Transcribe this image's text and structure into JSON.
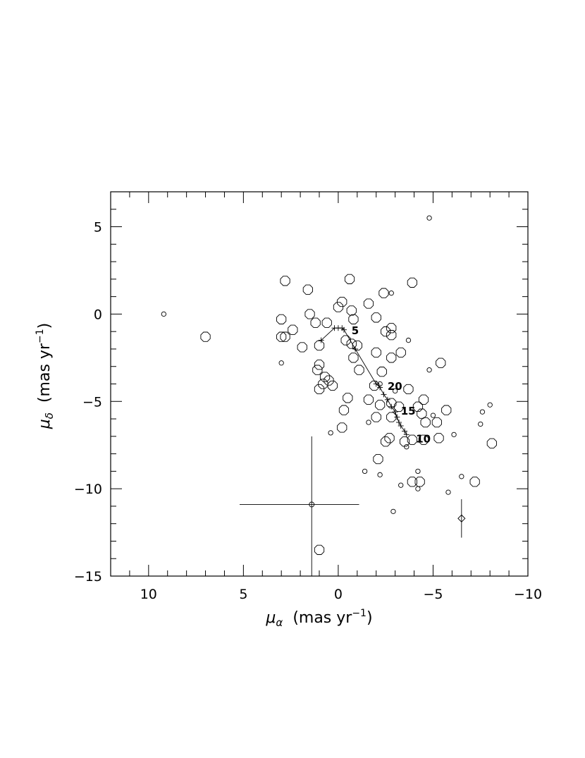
{
  "chart_data": {
    "type": "scatter",
    "title": "",
    "xlabel": {
      "main": "μ",
      "sub": "α",
      "unit_pre": "(mas yr",
      "unit_sup": "−1",
      "unit_post": ")"
    },
    "ylabel": {
      "main": "μ",
      "sub": "δ",
      "unit_pre": "(mas yr",
      "unit_sup": "−1",
      "unit_post": ")"
    },
    "xlim": [
      12,
      -10
    ],
    "ylim": [
      -15,
      7
    ],
    "x_ticks": [
      10,
      5,
      0,
      -5,
      -10
    ],
    "x_tick_labels": [
      "10",
      "5",
      "0",
      "−5",
      "−10"
    ],
    "y_ticks": [
      5,
      0,
      -5,
      -10,
      -15
    ],
    "y_tick_labels": [
      "5",
      "0",
      "−5",
      "−10",
      "−15"
    ],
    "grid": false,
    "points_large": [
      [
        -3.9,
        1.8
      ],
      [
        2.8,
        1.9
      ],
      [
        1.6,
        1.4
      ],
      [
        -0.6,
        2.0
      ],
      [
        -2.4,
        1.2
      ],
      [
        -1.6,
        0.6
      ],
      [
        -2.0,
        -0.2
      ],
      [
        -0.2,
        0.7
      ],
      [
        0.0,
        0.4
      ],
      [
        -0.7,
        0.2
      ],
      [
        -0.8,
        -0.3
      ],
      [
        1.5,
        0.0
      ],
      [
        3.0,
        -0.3
      ],
      [
        2.4,
        -0.9
      ],
      [
        1.2,
        -0.5
      ],
      [
        0.6,
        -0.5
      ],
      [
        3.0,
        -1.3
      ],
      [
        2.8,
        -1.3
      ],
      [
        7.0,
        -1.3
      ],
      [
        1.9,
        -1.9
      ],
      [
        1.0,
        -1.8
      ],
      [
        -0.4,
        -1.5
      ],
      [
        -0.7,
        -1.7
      ],
      [
        -1.0,
        -1.8
      ],
      [
        -2.5,
        -1.0
      ],
      [
        -2.8,
        -0.8
      ],
      [
        -2.8,
        -1.2
      ],
      [
        -3.3,
        -2.2
      ],
      [
        -5.4,
        -2.8
      ],
      [
        -2.0,
        -2.2
      ],
      [
        -0.8,
        -2.5
      ],
      [
        -2.8,
        -2.5
      ],
      [
        -2.3,
        -3.3
      ],
      [
        1.0,
        -2.9
      ],
      [
        1.1,
        -3.2
      ],
      [
        -1.1,
        -3.2
      ],
      [
        0.7,
        -3.6
      ],
      [
        0.5,
        -3.8
      ],
      [
        0.8,
        -4.0
      ],
      [
        1.0,
        -4.3
      ],
      [
        0.3,
        -4.1
      ],
      [
        -1.6,
        -4.9
      ],
      [
        -1.9,
        -4.1
      ],
      [
        -3.7,
        -4.3
      ],
      [
        -4.5,
        -4.9
      ],
      [
        -2.2,
        -5.2
      ],
      [
        -0.3,
        -5.5
      ],
      [
        -0.5,
        -4.8
      ],
      [
        -2.0,
        -5.9
      ],
      [
        -2.8,
        -5.1
      ],
      [
        -2.8,
        -5.9
      ],
      [
        -4.2,
        -5.3
      ],
      [
        -4.4,
        -5.7
      ],
      [
        -5.7,
        -5.5
      ],
      [
        -4.6,
        -6.2
      ],
      [
        -5.2,
        -6.2
      ],
      [
        -5.3,
        -7.1
      ],
      [
        -3.2,
        -5.3
      ],
      [
        -2.7,
        -7.1
      ],
      [
        -2.5,
        -7.3
      ],
      [
        -3.5,
        -7.3
      ],
      [
        -3.9,
        -7.2
      ],
      [
        -4.5,
        -7.2
      ],
      [
        -0.2,
        -6.5
      ],
      [
        -2.1,
        -8.3
      ],
      [
        -3.9,
        -9.6
      ],
      [
        -7.2,
        -9.6
      ],
      [
        -4.3,
        -9.6
      ],
      [
        -8.1,
        -7.4
      ],
      [
        1.0,
        -13.5
      ]
    ],
    "points_small": [
      [
        -4.8,
        5.5
      ],
      [
        9.2,
        0.0
      ],
      [
        -2.8,
        1.2
      ],
      [
        3.0,
        -2.8
      ],
      [
        -3.7,
        -1.5
      ],
      [
        -4.8,
        -3.2
      ],
      [
        -1.6,
        -6.2
      ],
      [
        0.4,
        -6.8
      ],
      [
        -6.1,
        -6.9
      ],
      [
        -7.6,
        -5.6
      ],
      [
        -8.0,
        -5.2
      ],
      [
        -7.5,
        -6.3
      ],
      [
        -1.4,
        -9.0
      ],
      [
        -2.2,
        -9.2
      ],
      [
        -3.3,
        -9.8
      ],
      [
        -4.2,
        -9.0
      ],
      [
        -4.2,
        -10.0
      ],
      [
        -5.8,
        -10.2
      ],
      [
        -6.5,
        -9.3
      ],
      [
        -2.9,
        -11.3
      ],
      [
        -3.0,
        -4.4
      ],
      [
        -3.6,
        -7.6
      ],
      [
        -5.0,
        -5.8
      ],
      [
        -2.2,
        -4.0
      ]
    ],
    "highlight_circle": {
      "x": 1.4,
      "y": -10.9,
      "xerr": [
        3.8,
        2.5
      ],
      "yerr": [
        3.9,
        4.1
      ]
    },
    "highlight_diamond": {
      "x": -6.5,
      "y": -11.7,
      "yerr": [
        1.1,
        1.1
      ]
    },
    "track": [
      [
        0.9,
        -1.5
      ],
      [
        0.2,
        -0.8
      ],
      [
        0.0,
        -0.8
      ],
      [
        -0.2,
        -0.8
      ],
      [
        -0.3,
        -0.9
      ],
      [
        -0.9,
        -2.0
      ],
      [
        -2.0,
        -4.0
      ],
      [
        -2.2,
        -4.2
      ],
      [
        -2.4,
        -4.6
      ],
      [
        -2.6,
        -4.9
      ],
      [
        -2.8,
        -5.3
      ],
      [
        -3.0,
        -5.6
      ],
      [
        -3.1,
        -5.9
      ],
      [
        -3.2,
        -6.2
      ],
      [
        -3.3,
        -6.4
      ],
      [
        -3.5,
        -6.7
      ],
      [
        -3.6,
        -6.9
      ]
    ],
    "track_labels": [
      {
        "text": "5",
        "x": -0.7,
        "y": -0.95
      },
      {
        "text": "20",
        "x": -2.6,
        "y": -4.15
      },
      {
        "text": "15",
        "x": -3.3,
        "y": -5.55
      },
      {
        "text": "10",
        "x": -4.1,
        "y": -7.15
      }
    ]
  }
}
